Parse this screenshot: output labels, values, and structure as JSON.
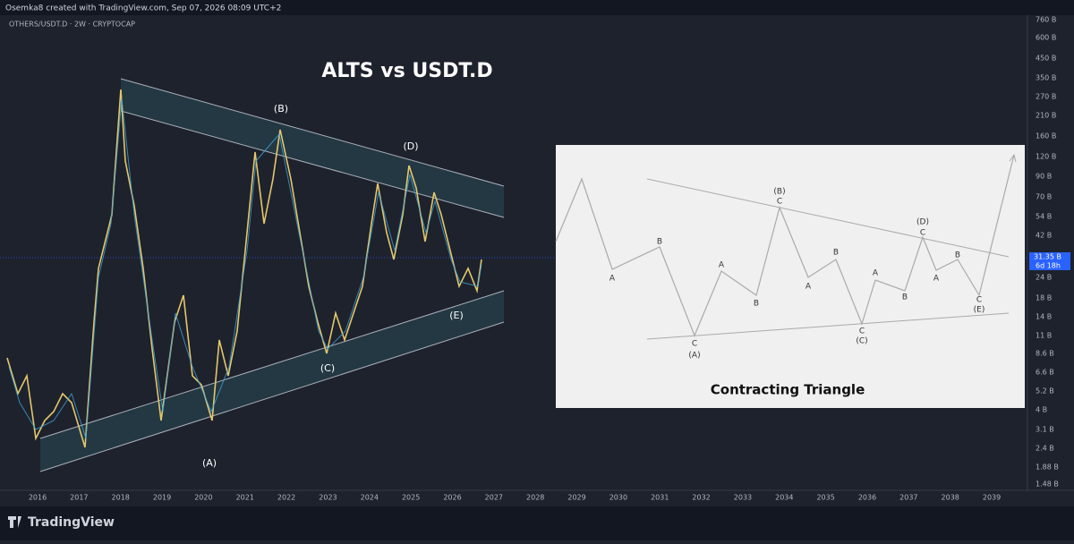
{
  "header": {
    "credit": "Osemka8 created with TradingView.com, Sep 07, 2026 08:09 UTC+2",
    "symbol": "OTHERS/USDT.D · 2W · CRYPTOCAP"
  },
  "chart": {
    "title": "ALTS vs USDT.D",
    "wave_labels": [
      "(A)",
      "(B)",
      "(C)",
      "(D)",
      "(E)"
    ],
    "price_axis": [
      "760 B",
      "600 B",
      "450 B",
      "350 B",
      "270 B",
      "210 B",
      "160 B",
      "120 B",
      "90 B",
      "70 B",
      "54 B",
      "42 B",
      "24 B",
      "18 B",
      "14 B",
      "11 B",
      "8.6 B",
      "6.6 B",
      "5.2 B",
      "4 B",
      "3.1 B",
      "2.4 B",
      "1.88 B",
      "1.48 B"
    ],
    "current_price": "31.35 B",
    "countdown": "6d 18h",
    "time_axis": [
      "2016",
      "2017",
      "2018",
      "2019",
      "2020",
      "2021",
      "2022",
      "2023",
      "2024",
      "2025",
      "2026",
      "2027",
      "2028",
      "2029",
      "2030",
      "2031",
      "2032",
      "2033",
      "2034",
      "2035",
      "2036",
      "2037",
      "2038",
      "2039"
    ]
  },
  "inset": {
    "title": "Contracting Triangle",
    "labels": [
      "A",
      "B",
      "C",
      "(A)",
      "A",
      "B",
      "(B)",
      "C",
      "A",
      "B",
      "C",
      "(C)",
      "A",
      "B",
      "(D)",
      "C",
      "A",
      "B",
      "C",
      "(E)"
    ]
  },
  "footer": {
    "brand": "TradingView"
  }
}
